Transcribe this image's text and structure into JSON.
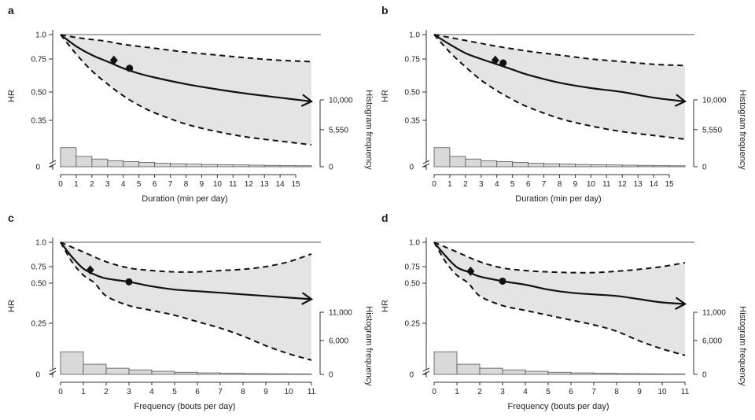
{
  "figure": {
    "panels": [
      {
        "label": "a",
        "xlabel": "Duration (min per day)",
        "ylabel": "HR",
        "y2label": "Histogram frequency",
        "xmax": 16,
        "xticks": [
          0,
          1,
          2,
          3,
          4,
          5,
          6,
          7,
          8,
          9,
          10,
          11,
          12,
          13,
          14,
          15
        ],
        "xticklabels": [
          "0",
          "1",
          "2",
          "3",
          "4",
          "5",
          "6",
          "7",
          "8",
          "9",
          "10",
          "11",
          "12",
          "13",
          "14",
          "15"
        ],
        "yticks": [
          1.0,
          0.75,
          0.5,
          0.35
        ],
        "yticklabels": [
          "1.0",
          "0.75",
          "0.50",
          "0.35"
        ],
        "hist_ticks": [
          10000,
          5550,
          0
        ],
        "hist_ticklabels": [
          "10,000",
          "5,550",
          "0"
        ],
        "hist_max": 10000
      },
      {
        "label": "b",
        "xlabel": "Duration (min per day)",
        "ylabel": "HR",
        "y2label": "Histogram frequency",
        "xmax": 16,
        "xticks": [
          0,
          1,
          2,
          3,
          4,
          5,
          6,
          7,
          8,
          9,
          10,
          11,
          12,
          13,
          14,
          15
        ],
        "xticklabels": [
          "0",
          "1",
          "2",
          "3",
          "4",
          "5",
          "6",
          "7",
          "8",
          "9",
          "10",
          "11",
          "12",
          "13",
          "14",
          "15"
        ],
        "yticks": [
          1.0,
          0.75,
          0.5,
          0.35
        ],
        "yticklabels": [
          "1.0",
          "0.75",
          "0.50",
          "0.35"
        ],
        "hist_ticks": [
          10000,
          5550,
          0
        ],
        "hist_ticklabels": [
          "10,000",
          "5,550",
          "0"
        ],
        "hist_max": 10000
      },
      {
        "label": "c",
        "xlabel": "Frequency (bouts per day)",
        "ylabel": "HR",
        "y2label": "Histogram frequency",
        "xmax": 11,
        "xticks": [
          0,
          1,
          2,
          3,
          4,
          5,
          6,
          7,
          8,
          9,
          10,
          11
        ],
        "xticklabels": [
          "0",
          "1",
          "2",
          "3",
          "4",
          "5",
          "6",
          "7",
          "8",
          "9",
          "10",
          "11"
        ],
        "yticks": [
          1.0,
          0.75,
          0.5,
          0.25
        ],
        "yticklabels": [
          "1.0",
          "0.75",
          "0.50",
          "0.25"
        ],
        "hist_ticks": [
          11000,
          6000,
          0
        ],
        "hist_ticklabels": [
          "11,000",
          "6,000",
          "0"
        ],
        "hist_max": 11000
      },
      {
        "label": "d",
        "xlabel": "Frequency (bouts per day)",
        "ylabel": "HR",
        "y2label": "Histogram frequency",
        "xmax": 11,
        "xticks": [
          0,
          1,
          2,
          3,
          4,
          5,
          6,
          7,
          8,
          9,
          10,
          11
        ],
        "xticklabels": [
          "0",
          "1",
          "2",
          "3",
          "4",
          "5",
          "6",
          "7",
          "8",
          "9",
          "10",
          "11"
        ],
        "yticks": [
          1.0,
          0.75,
          0.5,
          0.25
        ],
        "yticklabels": [
          "1.0",
          "0.75",
          "0.50",
          "0.25"
        ],
        "hist_ticks": [
          11000,
          6000,
          0
        ],
        "hist_ticklabels": [
          "11,000",
          "6,000",
          "0"
        ],
        "hist_max": 11000
      }
    ]
  },
  "chart_data": [
    {
      "panel": "a",
      "type": "line",
      "xlabel": "Duration (min per day)",
      "ylabel": "HR",
      "xlim": [
        0,
        16
      ],
      "ylim": [
        0,
        1.0
      ],
      "hr_curve": {
        "x": [
          0,
          1,
          2,
          3,
          4,
          5,
          6,
          8,
          10,
          12,
          14,
          16
        ],
        "y": [
          1.0,
          0.88,
          0.79,
          0.73,
          0.68,
          0.64,
          0.61,
          0.56,
          0.52,
          0.49,
          0.47,
          0.45
        ]
      },
      "ci_upper": {
        "x": [
          0,
          1,
          2,
          3,
          4,
          6,
          8,
          10,
          12,
          14,
          16
        ],
        "y": [
          1.0,
          0.97,
          0.95,
          0.93,
          0.9,
          0.86,
          0.82,
          0.79,
          0.76,
          0.74,
          0.73
        ]
      },
      "ci_lower": {
        "x": [
          0,
          1,
          2,
          3,
          4,
          5,
          6,
          8,
          10,
          12,
          14,
          16
        ],
        "y": [
          1.0,
          0.8,
          0.66,
          0.56,
          0.48,
          0.43,
          0.39,
          0.33,
          0.29,
          0.26,
          0.24,
          0.22
        ]
      },
      "markers": [
        {
          "shape": "diamond",
          "x": 3.4,
          "y": 0.74
        },
        {
          "shape": "circle",
          "x": 4.4,
          "y": 0.68
        }
      ],
      "histogram": {
        "bins": [
          0,
          1,
          2,
          3,
          4,
          5,
          6,
          7,
          8,
          9,
          10,
          11,
          12,
          13,
          14,
          15
        ],
        "values": [
          2850,
          1550,
          1150,
          900,
          780,
          650,
          520,
          450,
          400,
          340,
          300,
          270,
          240,
          200,
          170,
          150
        ],
        "y2_ticks": [
          0,
          5550,
          10000
        ]
      }
    },
    {
      "panel": "b",
      "type": "line",
      "xlabel": "Duration (min per day)",
      "ylabel": "HR",
      "xlim": [
        0,
        16
      ],
      "ylim": [
        0,
        1.0
      ],
      "hr_curve": {
        "x": [
          0,
          1,
          2,
          3,
          4,
          5,
          6,
          8,
          10,
          12,
          14,
          16
        ],
        "y": [
          1.0,
          0.9,
          0.81,
          0.75,
          0.71,
          0.67,
          0.63,
          0.57,
          0.53,
          0.5,
          0.47,
          0.45
        ]
      },
      "ci_upper": {
        "x": [
          0,
          1,
          2,
          3,
          4,
          6,
          8,
          10,
          12,
          14,
          16
        ],
        "y": [
          1.0,
          0.97,
          0.94,
          0.91,
          0.88,
          0.83,
          0.79,
          0.75,
          0.73,
          0.71,
          0.7
        ]
      },
      "ci_lower": {
        "x": [
          0,
          1,
          2,
          3,
          4,
          5,
          6,
          8,
          10,
          12,
          14,
          16
        ],
        "y": [
          1.0,
          0.82,
          0.69,
          0.59,
          0.51,
          0.46,
          0.42,
          0.36,
          0.32,
          0.29,
          0.27,
          0.25
        ]
      },
      "markers": [
        {
          "shape": "diamond",
          "x": 3.9,
          "y": 0.74
        },
        {
          "shape": "circle",
          "x": 4.4,
          "y": 0.72
        }
      ],
      "histogram": {
        "bins": [
          0,
          1,
          2,
          3,
          4,
          5,
          6,
          7,
          8,
          9,
          10,
          11,
          12,
          13,
          14,
          15
        ],
        "values": [
          2850,
          1550,
          1150,
          900,
          780,
          650,
          520,
          450,
          400,
          340,
          300,
          270,
          240,
          200,
          170,
          150
        ],
        "y2_ticks": [
          0,
          5550,
          10000
        ]
      }
    },
    {
      "panel": "c",
      "type": "line",
      "xlabel": "Frequency (bouts per day)",
      "ylabel": "HR",
      "xlim": [
        0,
        11
      ],
      "ylim": [
        0,
        1.0
      ],
      "hr_curve": {
        "x": [
          0,
          0.5,
          1,
          1.5,
          2,
          3,
          4,
          5,
          6,
          7,
          8,
          9,
          10,
          11
        ],
        "y": [
          1.0,
          0.85,
          0.72,
          0.63,
          0.57,
          0.52,
          0.48,
          0.46,
          0.45,
          0.44,
          0.43,
          0.42,
          0.41,
          0.4
        ]
      },
      "ci_upper": {
        "x": [
          0,
          1,
          2,
          3,
          4,
          5,
          6,
          7,
          8,
          9,
          10,
          11
        ],
        "y": [
          1.0,
          0.9,
          0.8,
          0.73,
          0.69,
          0.67,
          0.67,
          0.69,
          0.71,
          0.75,
          0.8,
          0.88
        ]
      },
      "ci_lower": {
        "x": [
          0,
          0.5,
          1,
          1.5,
          2,
          3,
          4,
          5,
          6,
          7,
          8,
          9,
          10,
          11
        ],
        "y": [
          1.0,
          0.8,
          0.62,
          0.5,
          0.42,
          0.36,
          0.33,
          0.3,
          0.26,
          0.22,
          0.17,
          0.11,
          0.06,
          0.02
        ]
      },
      "markers": [
        {
          "shape": "diamond",
          "x": 1.3,
          "y": 0.7
        },
        {
          "shape": "circle",
          "x": 3.0,
          "y": 0.52
        }
      ],
      "histogram": {
        "bins": [
          0,
          1,
          2,
          3,
          4,
          5,
          6,
          7,
          8,
          9,
          10
        ],
        "values": [
          4000,
          1800,
          1100,
          800,
          550,
          380,
          270,
          190,
          140,
          100,
          80
        ],
        "y2_ticks": [
          0,
          6000,
          11000
        ]
      }
    },
    {
      "panel": "d",
      "type": "line",
      "xlabel": "Frequency (bouts per day)",
      "ylabel": "HR",
      "xlim": [
        0,
        11
      ],
      "ylim": [
        0,
        1.0
      ],
      "hr_curve": {
        "x": [
          0,
          0.5,
          1,
          1.5,
          2,
          3,
          4,
          5,
          6,
          7,
          8,
          9,
          10,
          11
        ],
        "y": [
          1.0,
          0.86,
          0.74,
          0.67,
          0.6,
          0.53,
          0.49,
          0.46,
          0.44,
          0.43,
          0.42,
          0.4,
          0.38,
          0.37
        ]
      },
      "ci_upper": {
        "x": [
          0,
          1,
          2,
          3,
          4,
          5,
          6,
          7,
          8,
          9,
          10,
          11
        ],
        "y": [
          1.0,
          0.9,
          0.8,
          0.73,
          0.69,
          0.67,
          0.66,
          0.66,
          0.68,
          0.71,
          0.75,
          0.79
        ]
      },
      "ci_lower": {
        "x": [
          0,
          0.5,
          1,
          1.5,
          2,
          3,
          4,
          5,
          6,
          7,
          8,
          9,
          10,
          11
        ],
        "y": [
          1.0,
          0.8,
          0.62,
          0.5,
          0.42,
          0.36,
          0.33,
          0.3,
          0.27,
          0.24,
          0.2,
          0.14,
          0.09,
          0.05
        ]
      },
      "markers": [
        {
          "shape": "diamond",
          "x": 1.6,
          "y": 0.68
        },
        {
          "shape": "circle",
          "x": 3.0,
          "y": 0.53
        }
      ],
      "histogram": {
        "bins": [
          0,
          1,
          2,
          3,
          4,
          5,
          6,
          7,
          8,
          9,
          10
        ],
        "values": [
          4000,
          1800,
          1100,
          800,
          550,
          380,
          270,
          190,
          140,
          100,
          80
        ],
        "y2_ticks": [
          0,
          6000,
          11000
        ]
      }
    }
  ]
}
